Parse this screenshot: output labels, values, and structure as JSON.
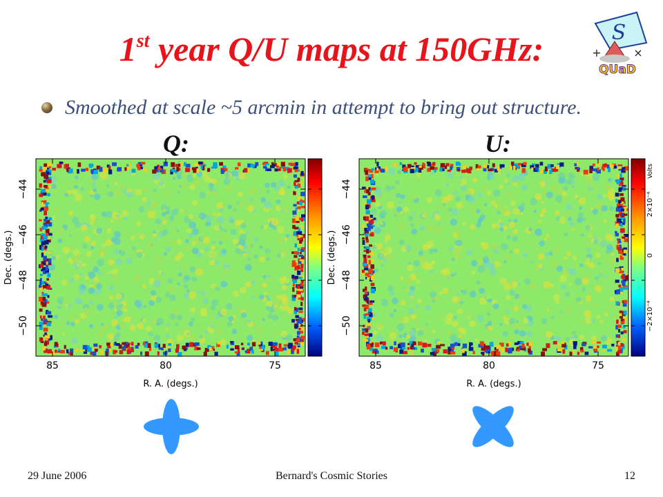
{
  "slide": {
    "title_pre": "1",
    "title_sup": "st",
    "title_post": " year Q/U maps at 150GHz:",
    "bullet": "Smoothed at scale ~5 arcmin in attempt to bring out structure.",
    "footer_left": "29 June 2006",
    "footer_center": "Bernard's Cosmic Stories",
    "footer_right": "12"
  },
  "logo": {
    "letter": "S",
    "plus": "+",
    "times": "×",
    "name": "QUaD"
  },
  "maps": [
    {
      "label": "Q:",
      "ra_ticks": [
        "85",
        "80",
        "75"
      ],
      "dec_ticks": [
        "−44",
        "−46",
        "−48",
        "−50"
      ],
      "xlabel": "R. A. (degs.)",
      "ylabel": "Dec. (degs.)",
      "colorbar_ticks": [],
      "colorbar_unit": ""
    },
    {
      "label": "U:",
      "ra_ticks": [
        "85",
        "80",
        "75"
      ],
      "dec_ticks": [
        "−44",
        "−46",
        "−48",
        "−50"
      ],
      "xlabel": "R. A. (degs.)",
      "ylabel": "Dec. (degs.)",
      "colorbar_ticks": [
        "2×10⁻⁴",
        "0",
        "−2×10⁻⁴"
      ],
      "colorbar_unit": "Volts"
    }
  ],
  "colors": {
    "title": "#e8141b",
    "bullet_text": "#3a4f7a",
    "symbol": "#3399ff",
    "map_background": "#8ee86a"
  }
}
